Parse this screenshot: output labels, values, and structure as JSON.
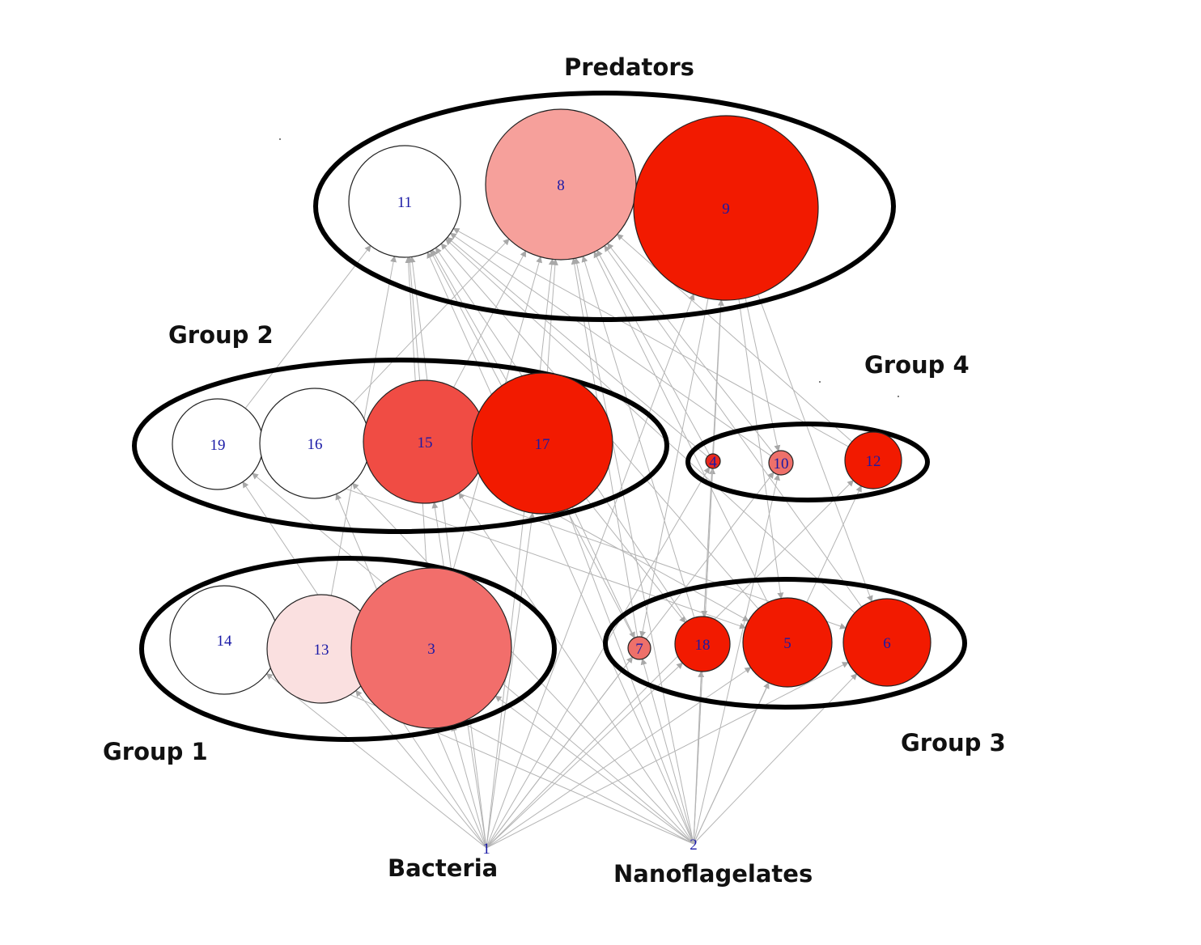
{
  "groups": {
    "predators": "Predators",
    "group2": "Group 2",
    "group4": "Group 4",
    "group1": "Group 1",
    "group3": "Group 3",
    "bacteria": "Bacteria",
    "nanoflagelates": "Nanoflagelates"
  },
  "nodes": [
    {
      "id": "11",
      "fill": "#ffffff"
    },
    {
      "id": "8",
      "fill": "#f6a09b"
    },
    {
      "id": "9",
      "fill": "#f21a00"
    },
    {
      "id": "19",
      "fill": "#ffffff"
    },
    {
      "id": "16",
      "fill": "#ffffff"
    },
    {
      "id": "15",
      "fill": "#f04c44"
    },
    {
      "id": "17",
      "fill": "#f21a00"
    },
    {
      "id": "4",
      "fill": "#e8281e"
    },
    {
      "id": "10",
      "fill": "#ee706a"
    },
    {
      "id": "12",
      "fill": "#f21a00"
    },
    {
      "id": "14",
      "fill": "#ffffff"
    },
    {
      "id": "13",
      "fill": "#fae0e0"
    },
    {
      "id": "3",
      "fill": "#f26e6b"
    },
    {
      "id": "7",
      "fill": "#ee706a"
    },
    {
      "id": "18",
      "fill": "#f21a00"
    },
    {
      "id": "5",
      "fill": "#f21a00"
    },
    {
      "id": "6",
      "fill": "#f21a00"
    },
    {
      "id": "1",
      "fill": "#ffffff"
    },
    {
      "id": "2",
      "fill": "#ffffff"
    }
  ],
  "edges": [
    [
      "1",
      "14"
    ],
    [
      "1",
      "13"
    ],
    [
      "1",
      "3"
    ],
    [
      "1",
      "19"
    ],
    [
      "1",
      "16"
    ],
    [
      "1",
      "15"
    ],
    [
      "1",
      "17"
    ],
    [
      "1",
      "7"
    ],
    [
      "1",
      "18"
    ],
    [
      "1",
      "5"
    ],
    [
      "1",
      "6"
    ],
    [
      "1",
      "4"
    ],
    [
      "1",
      "10"
    ],
    [
      "1",
      "12"
    ],
    [
      "1",
      "11"
    ],
    [
      "1",
      "8"
    ],
    [
      "1",
      "9"
    ],
    [
      "2",
      "14"
    ],
    [
      "2",
      "13"
    ],
    [
      "2",
      "3"
    ],
    [
      "2",
      "19"
    ],
    [
      "2",
      "16"
    ],
    [
      "2",
      "15"
    ],
    [
      "2",
      "17"
    ],
    [
      "2",
      "7"
    ],
    [
      "2",
      "18"
    ],
    [
      "2",
      "5"
    ],
    [
      "2",
      "6"
    ],
    [
      "2",
      "4"
    ],
    [
      "2",
      "10"
    ],
    [
      "2",
      "12"
    ],
    [
      "2",
      "11"
    ],
    [
      "2",
      "8"
    ],
    [
      "2",
      "9"
    ],
    [
      "3",
      "11"
    ],
    [
      "3",
      "8"
    ],
    [
      "13",
      "11"
    ],
    [
      "19",
      "11"
    ],
    [
      "16",
      "8"
    ],
    [
      "15",
      "11"
    ],
    [
      "15",
      "8"
    ],
    [
      "17",
      "11"
    ],
    [
      "17",
      "8"
    ],
    [
      "7",
      "11"
    ],
    [
      "7",
      "8"
    ],
    [
      "18",
      "11"
    ],
    [
      "18",
      "8"
    ],
    [
      "5",
      "11"
    ],
    [
      "5",
      "8"
    ],
    [
      "6",
      "11"
    ],
    [
      "6",
      "8"
    ],
    [
      "4",
      "11"
    ],
    [
      "4",
      "8"
    ],
    [
      "10",
      "11"
    ],
    [
      "10",
      "8"
    ],
    [
      "12",
      "11"
    ],
    [
      "12",
      "8"
    ],
    [
      "9",
      "7"
    ],
    [
      "9",
      "18"
    ],
    [
      "9",
      "5"
    ],
    [
      "9",
      "6"
    ],
    [
      "9",
      "10"
    ],
    [
      "17",
      "7"
    ],
    [
      "17",
      "18"
    ],
    [
      "15",
      "5"
    ],
    [
      "16",
      "6"
    ],
    [
      "19",
      "5"
    ]
  ]
}
